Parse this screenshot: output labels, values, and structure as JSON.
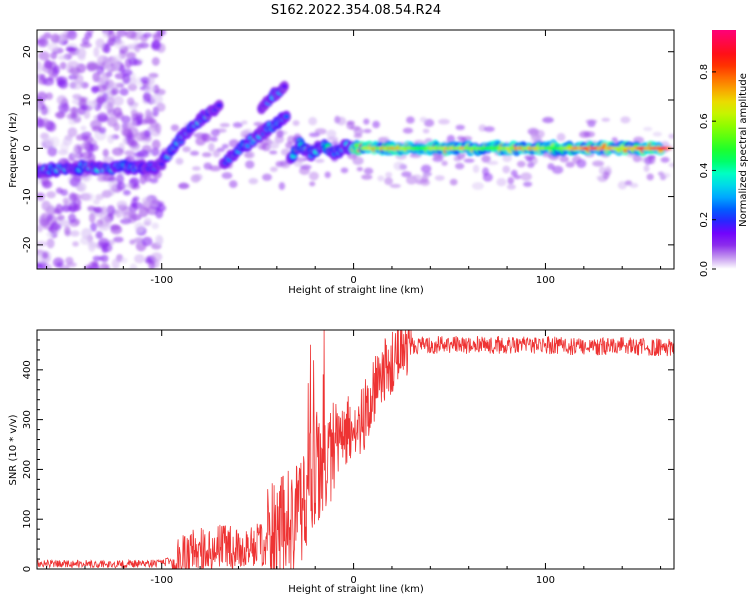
{
  "figure": {
    "title": "S162.2022.354.08.54.R24"
  },
  "chart_data": [
    {
      "type": "heatmap",
      "xlabel": "Height of straight line (km)",
      "ylabel": "Frequency (Hz)",
      "xlim": [
        -165,
        167
      ],
      "ylim": [
        -25,
        24.5
      ],
      "xticks": [
        -100,
        0,
        100
      ],
      "yticks": [
        -20,
        -10,
        0,
        10,
        20
      ],
      "colorbar": {
        "label": "Normalized spectral amplitude",
        "range": [
          0.0,
          0.97
        ],
        "ticks": [
          0.0,
          0.2,
          0.4,
          0.6,
          0.8
        ],
        "tick_labels": [
          "0.0",
          "0.2",
          "0.4",
          "0.6",
          "0.8"
        ],
        "colormap": "gist_rainbow_r"
      },
      "ridges": [
        {
          "points": [
            [
              -165,
              -5
            ],
            [
              -150,
              -4
            ],
            [
              -130,
              -4
            ],
            [
              -110,
              -4
            ],
            [
              -100,
              -3.5
            ]
          ],
          "amplitude": 0.28
        },
        {
          "points": [
            [
              -100,
              -3
            ],
            [
              -90,
              2
            ],
            [
              -80,
              6
            ],
            [
              -70,
              9
            ]
          ],
          "amplitude": 0.28
        },
        {
          "points": [
            [
              -68,
              -3
            ],
            [
              -55,
              1
            ],
            [
              -45,
              4
            ],
            [
              -35,
              6.5
            ]
          ],
          "amplitude": 0.28
        },
        {
          "points": [
            [
              -48,
              8
            ],
            [
              -42,
              11
            ],
            [
              -36,
              13
            ]
          ],
          "amplitude": 0.26
        },
        {
          "points": [
            [
              -33,
              -2
            ],
            [
              -28,
              1
            ],
            [
              -22,
              -1
            ],
            [
              -16,
              1
            ],
            [
              -10,
              -1
            ],
            [
              -4,
              0.5
            ],
            [
              0,
              0
            ]
          ],
          "amplitude": 0.32
        },
        {
          "points": [
            [
              0,
              0
            ],
            [
              40,
              0
            ],
            [
              80,
              0
            ],
            [
              120,
              0
            ],
            [
              160,
              0
            ]
          ],
          "amplitude": 0.6
        }
      ],
      "scatter_region": {
        "x": [
          -165,
          -100
        ],
        "y": [
          -25,
          24.5
        ],
        "amplitude": 0.1
      }
    },
    {
      "type": "line",
      "xlabel": "Height of straight line (km)",
      "ylabel": "SNR (10 * v/v)",
      "xlim": [
        -165,
        167
      ],
      "ylim": [
        0,
        480
      ],
      "xticks": [
        -100,
        0,
        100
      ],
      "yticks": [
        0,
        100,
        200,
        300,
        400
      ],
      "color": "#ee3333",
      "series": [
        {
          "x": [
            -165,
            -150,
            -130,
            -110,
            -100,
            -90,
            -80,
            -70,
            -60,
            -50,
            -40,
            -35,
            -30,
            -25,
            -20,
            -15,
            -10,
            -5,
            0,
            5,
            10,
            15,
            20,
            25,
            30,
            40,
            50,
            60,
            80,
            100,
            120,
            140,
            160,
            167
          ],
          "values": [
            12,
            10,
            10,
            10,
            12,
            20,
            45,
            45,
            40,
            50,
            55,
            80,
            110,
            150,
            190,
            230,
            260,
            270,
            290,
            300,
            350,
            390,
            420,
            440,
            448,
            450,
            450,
            450,
            450,
            450,
            445,
            448,
            445,
            445
          ]
        }
      ]
    }
  ]
}
